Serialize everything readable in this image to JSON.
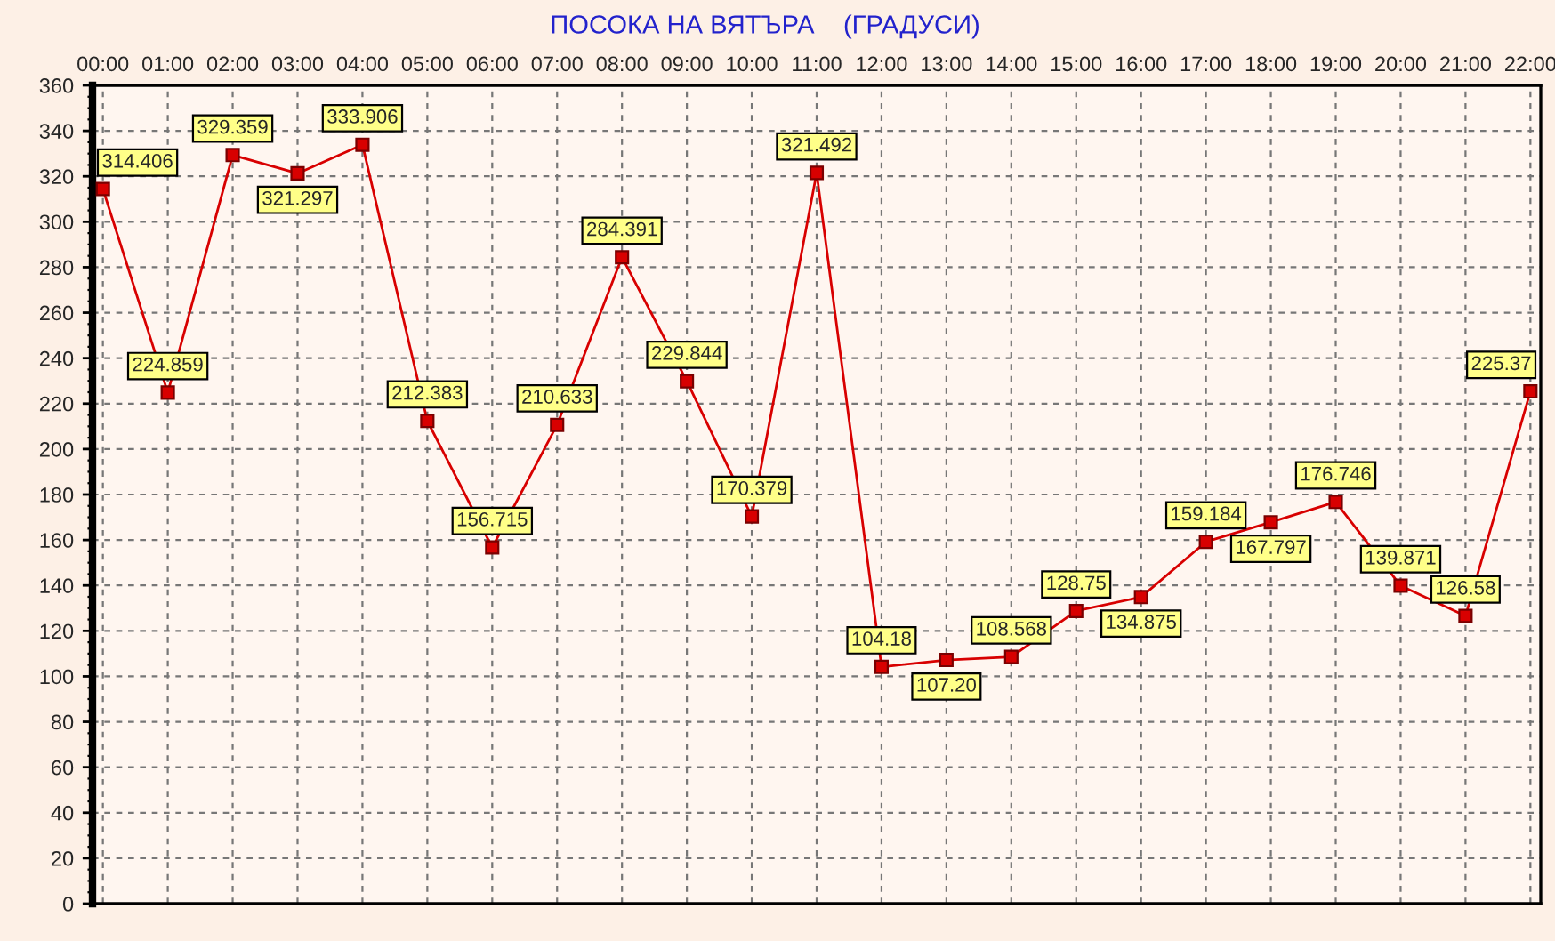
{
  "chart_data": {
    "type": "line",
    "title": "ПОСОКА НА ВЯТЪРА    (ГРАДУСИ)",
    "categories": [
      "00:00",
      "01:00",
      "02:00",
      "03:00",
      "04:00",
      "05:00",
      "06:00",
      "07:00",
      "08:00",
      "09:00",
      "10:00",
      "11:00",
      "12:00",
      "13:00",
      "14:00",
      "15:00",
      "16:00",
      "17:00",
      "18:00",
      "19:00",
      "20:00",
      "21:00",
      "22:00"
    ],
    "series": [
      {
        "color": "#d80000",
        "values": [
          314.406,
          224.859,
          329.359,
          321.297,
          333.906,
          212.383,
          156.715,
          210.633,
          284.391,
          229.844,
          170.379,
          321.492,
          104.18,
          107.2,
          108.568,
          128.75,
          134.875,
          159.184,
          167.797,
          176.746,
          139.871,
          126.58,
          225.37
        ],
        "value_labels": [
          "314.406",
          "224.859",
          "329.359",
          "321.297",
          "333.906",
          "212.383",
          "156.715",
          "210.633",
          "284.391",
          "229.844",
          "170.379",
          "321.492",
          "104.18",
          "107.20",
          "108.568",
          "128.75",
          "134.875",
          "159.184",
          "167.797",
          "176.746",
          "139.871",
          "126.58",
          "225.37"
        ]
      }
    ],
    "ylim": [
      0,
      360
    ],
    "yticks": [
      0,
      20,
      40,
      60,
      80,
      100,
      120,
      140,
      160,
      180,
      200,
      220,
      240,
      260,
      280,
      300,
      320,
      340,
      360
    ],
    "grid": true,
    "marker": "square"
  }
}
